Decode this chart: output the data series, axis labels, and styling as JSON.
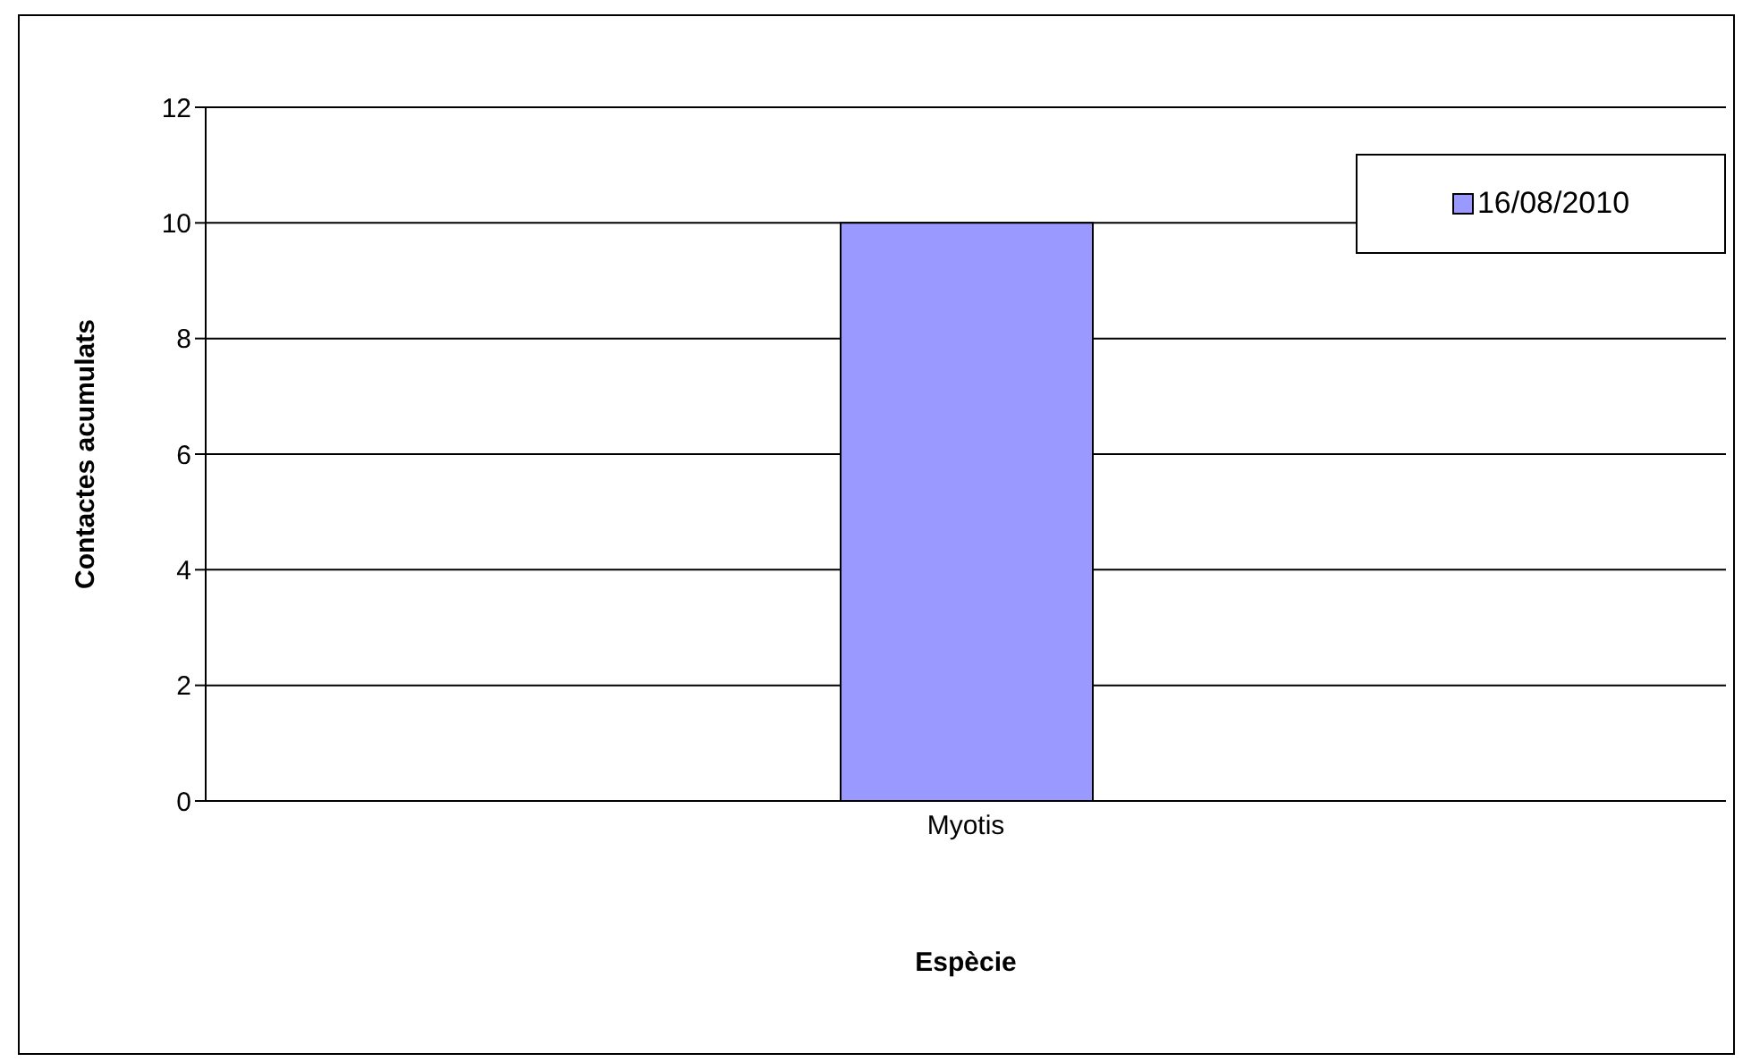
{
  "chart_data": {
    "type": "bar",
    "xlabel": "Espècie",
    "ylabel": "Contactes acumulats",
    "categories": [
      "Myotis"
    ],
    "series": [
      {
        "name": "16/08/2010",
        "color": "#9999ff",
        "values": [
          10
        ]
      }
    ],
    "ylim": [
      0,
      12
    ],
    "yticks": [
      0,
      2,
      4,
      6,
      8,
      10,
      12
    ],
    "grid": "y",
    "legend": "top right"
  }
}
